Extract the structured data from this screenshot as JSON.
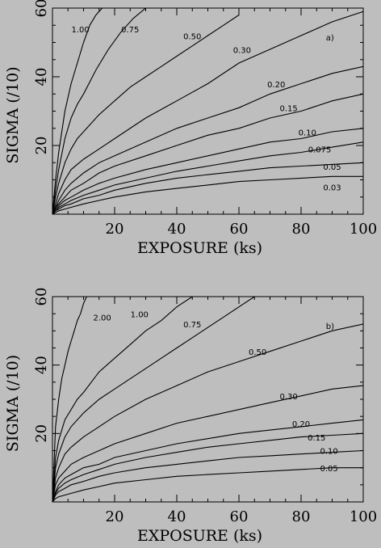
{
  "chart_data": [
    {
      "type": "line",
      "panel_tag": "a)",
      "xlabel": "EXPOSURE (ks)",
      "ylabel": "SIGMA (/10)",
      "xlim": [
        0,
        100
      ],
      "ylim": [
        0,
        60
      ],
      "xticks": [
        20,
        40,
        60,
        80,
        100
      ],
      "yticks": [
        20,
        40,
        60
      ],
      "grid": false,
      "series": [
        {
          "name": "1.00",
          "x": [
            1,
            2,
            4,
            6,
            8,
            10,
            12,
            14,
            16
          ],
          "y": [
            10,
            18,
            30,
            38,
            44,
            50,
            55,
            58,
            60
          ]
        },
        {
          "name": "0.75",
          "x": [
            1,
            2,
            4,
            6,
            8,
            10,
            14,
            18,
            22,
            26,
            30
          ],
          "y": [
            7,
            13,
            22,
            28,
            32,
            35,
            42,
            48,
            53,
            57,
            60
          ]
        },
        {
          "name": "0.50",
          "x": [
            1,
            2,
            4,
            6,
            8,
            10,
            15,
            20,
            25,
            30,
            35,
            40,
            45,
            50,
            55,
            60
          ],
          "y": [
            5,
            9,
            15,
            19,
            22,
            24,
            29,
            33,
            37,
            40,
            43,
            46,
            49,
            52,
            55,
            58
          ]
        },
        {
          "name": "0.30",
          "x": [
            1,
            2,
            4,
            6,
            10,
            15,
            20,
            30,
            40,
            50,
            60,
            70,
            80,
            90,
            100
          ],
          "y": [
            3,
            6,
            10,
            13,
            16,
            19,
            22,
            28,
            33,
            38,
            44,
            48,
            52,
            56,
            59
          ]
        },
        {
          "name": "0.20",
          "x": [
            1,
            2,
            4,
            6,
            10,
            15,
            20,
            30,
            40,
            50,
            60,
            70,
            80,
            90,
            100
          ],
          "y": [
            2,
            4,
            7,
            9,
            12,
            15,
            17,
            21,
            25,
            28,
            31,
            35,
            38,
            41,
            43
          ]
        },
        {
          "name": "0.15",
          "x": [
            1,
            2,
            4,
            6,
            10,
            15,
            20,
            30,
            40,
            50,
            60,
            70,
            80,
            90,
            100
          ],
          "y": [
            2,
            3,
            5,
            7,
            9,
            12,
            14,
            17,
            20,
            23,
            25,
            28,
            30,
            33,
            35
          ]
        },
        {
          "name": "0.10",
          "x": [
            1,
            2,
            4,
            6,
            10,
            15,
            20,
            30,
            40,
            50,
            60,
            70,
            80,
            90,
            100
          ],
          "y": [
            1.5,
            2.5,
            4,
            5,
            7,
            9,
            10.5,
            13,
            15,
            17,
            19,
            21,
            22,
            24,
            25
          ]
        },
        {
          "name": "0.075",
          "x": [
            1,
            2,
            4,
            6,
            10,
            15,
            20,
            30,
            40,
            50,
            60,
            70,
            80,
            90,
            100
          ],
          "y": [
            1,
            2,
            3,
            4,
            5.5,
            7,
            8.5,
            10.5,
            12.5,
            14,
            15.5,
            17,
            18,
            19.5,
            21
          ]
        },
        {
          "name": "0.05",
          "x": [
            1,
            2,
            4,
            6,
            10,
            15,
            20,
            30,
            40,
            50,
            60,
            70,
            80,
            90,
            100
          ],
          "y": [
            1,
            1.5,
            2.5,
            3,
            4.5,
            5.5,
            7,
            9,
            10.5,
            11.5,
            12.5,
            13.5,
            14,
            14.5,
            15
          ]
        },
        {
          "name": "0.03",
          "x": [
            1,
            2,
            4,
            6,
            10,
            15,
            20,
            30,
            40,
            50,
            60,
            70,
            80,
            90,
            100
          ],
          "y": [
            0.5,
            1,
            1.5,
            2,
            3,
            4,
            5,
            6.5,
            7.5,
            8.5,
            9.5,
            10,
            10.5,
            11,
            11
          ]
        }
      ],
      "labels": [
        {
          "text": "1.00",
          "x": 9,
          "y": 53
        },
        {
          "text": "0.75",
          "x": 25,
          "y": 53
        },
        {
          "text": "0.50",
          "x": 45,
          "y": 51
        },
        {
          "text": "0.30",
          "x": 61,
          "y": 47
        },
        {
          "text": "0.20",
          "x": 72,
          "y": 37
        },
        {
          "text": "0.15",
          "x": 76,
          "y": 30
        },
        {
          "text": "0.10",
          "x": 82,
          "y": 23
        },
        {
          "text": "0.075",
          "x": 86,
          "y": 18
        },
        {
          "text": "0.05",
          "x": 90,
          "y": 13
        },
        {
          "text": "0.03",
          "x": 90,
          "y": 7
        }
      ]
    },
    {
      "type": "line",
      "panel_tag": "b)",
      "xlabel": "EXPOSURE (ks)",
      "ylabel": "SIGMA (/10)",
      "xlim": [
        0,
        100
      ],
      "ylim": [
        0,
        60
      ],
      "xticks": [
        20,
        40,
        60,
        80,
        100
      ],
      "yticks": [
        20,
        40,
        60
      ],
      "grid": false,
      "series": [
        {
          "name": "2.00",
          "x": [
            1,
            2,
            3,
            4,
            5,
            6,
            7,
            8,
            9,
            10,
            11
          ],
          "y": [
            22,
            30,
            36,
            40,
            44,
            47,
            50,
            53,
            55,
            58,
            60
          ]
        },
        {
          "name": "1.00",
          "x": [
            1,
            2,
            4,
            6,
            8,
            10,
            15,
            20,
            25,
            30,
            35,
            40,
            45
          ],
          "y": [
            13,
            18,
            24,
            27,
            30,
            32,
            38,
            42,
            46,
            50,
            53,
            57,
            60
          ]
        },
        {
          "name": "0.75",
          "x": [
            1,
            2,
            4,
            6,
            10,
            15,
            20,
            25,
            30,
            35,
            40,
            45,
            50,
            55,
            60,
            65
          ],
          "y": [
            10,
            14,
            19,
            22,
            26,
            30,
            33,
            36,
            39,
            42,
            45,
            48,
            51,
            54,
            57,
            60
          ]
        },
        {
          "name": "0.50",
          "x": [
            1,
            2,
            4,
            6,
            10,
            15,
            20,
            30,
            40,
            50,
            60,
            70,
            80,
            90,
            100
          ],
          "y": [
            7,
            10,
            14,
            16,
            19,
            22,
            25,
            30,
            34,
            38,
            41,
            44,
            47,
            50,
            52
          ]
        },
        {
          "name": "0.30",
          "x": [
            1,
            2,
            4,
            6,
            10,
            15,
            20,
            30,
            40,
            50,
            60,
            70,
            80,
            90,
            100
          ],
          "y": [
            5,
            7,
            9,
            11,
            13,
            15,
            17,
            20,
            23,
            25,
            27,
            29,
            31,
            33,
            34
          ]
        },
        {
          "name": "0.20",
          "x": [
            1,
            2,
            4,
            6,
            10,
            15,
            20,
            30,
            40,
            50,
            60,
            70,
            80,
            90,
            100
          ],
          "y": [
            3,
            5,
            7,
            8,
            10,
            11,
            13,
            15,
            17,
            18.5,
            20,
            21,
            22,
            23,
            24
          ]
        },
        {
          "name": "0.15",
          "x": [
            1,
            2,
            4,
            6,
            10,
            15,
            20,
            30,
            40,
            50,
            60,
            70,
            80,
            90,
            100
          ],
          "y": [
            2.5,
            4,
            5.5,
            6.5,
            8,
            9.5,
            11,
            13,
            14.5,
            16,
            17,
            18,
            19,
            19.5,
            20
          ]
        },
        {
          "name": "0.10",
          "x": [
            1,
            2,
            4,
            6,
            10,
            15,
            20,
            30,
            40,
            50,
            60,
            70,
            80,
            90,
            100
          ],
          "y": [
            2,
            3,
            4,
            5,
            6,
            7.5,
            8.5,
            10,
            11,
            12,
            13,
            13.5,
            14,
            14.5,
            15
          ]
        },
        {
          "name": "0.05",
          "x": [
            1,
            2,
            4,
            6,
            10,
            15,
            20,
            30,
            40,
            50,
            60,
            70,
            80,
            90,
            100
          ],
          "y": [
            1,
            1.5,
            2,
            2.5,
            3.5,
            4.5,
            5.5,
            6.5,
            7.5,
            8,
            8.5,
            9,
            9.5,
            10,
            10
          ]
        }
      ],
      "labels": [
        {
          "text": "2.00",
          "x": 16,
          "y": 53
        },
        {
          "text": "1.00",
          "x": 28,
          "y": 54
        },
        {
          "text": "0.75",
          "x": 45,
          "y": 51
        },
        {
          "text": "0.50",
          "x": 66,
          "y": 43
        },
        {
          "text": "0.30",
          "x": 76,
          "y": 30
        },
        {
          "text": "0.20",
          "x": 80,
          "y": 22
        },
        {
          "text": "0.15",
          "x": 85,
          "y": 18
        },
        {
          "text": "0.10",
          "x": 89,
          "y": 14
        },
        {
          "text": "0.05",
          "x": 89,
          "y": 9
        }
      ]
    }
  ]
}
